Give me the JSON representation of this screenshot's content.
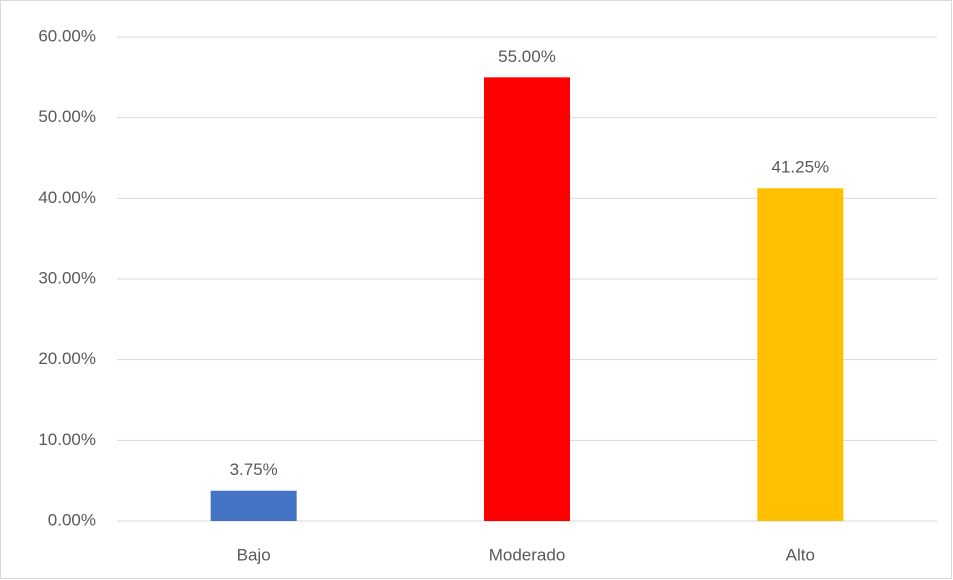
{
  "chart_data": {
    "type": "bar",
    "categories": [
      "Bajo",
      "Moderado",
      "Alto"
    ],
    "values": [
      3.75,
      55,
      41.25
    ],
    "value_labels": [
      "3.75%",
      "55.00%",
      "41.25%"
    ],
    "colors": [
      "#4472c4",
      "#ff0000",
      "#ffc000"
    ],
    "ylim": [
      0,
      60
    ],
    "yticks": [
      {
        "value": 0,
        "label": "0.00%"
      },
      {
        "value": 10,
        "label": "10.00%"
      },
      {
        "value": 20,
        "label": "20.00%"
      },
      {
        "value": 30,
        "label": "30.00%"
      },
      {
        "value": 40,
        "label": "40.00%"
      },
      {
        "value": 50,
        "label": "50.00%"
      },
      {
        "value": 60,
        "label": "60.00%"
      }
    ],
    "grid": true
  }
}
